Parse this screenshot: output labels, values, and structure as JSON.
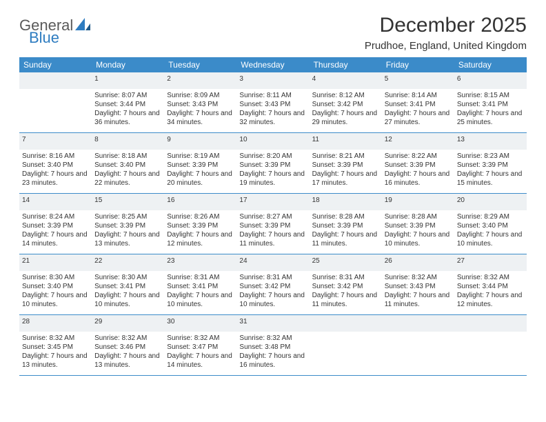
{
  "header": {
    "logo_general": "General",
    "logo_blue": "Blue",
    "month_title": "December 2025",
    "location": "Prudhoe, England, United Kingdom"
  },
  "colors": {
    "header_bg": "#3b8bc9",
    "header_text": "#ffffff",
    "daynum_bg": "#eef1f3",
    "row_border": "#3b8bc9",
    "text": "#333333",
    "logo_gray": "#5a5a5a",
    "logo_blue": "#2e7cc0"
  },
  "weekdays": [
    "Sunday",
    "Monday",
    "Tuesday",
    "Wednesday",
    "Thursday",
    "Friday",
    "Saturday"
  ],
  "weeks": [
    {
      "days": [
        null,
        {
          "n": "1",
          "sunrise": "8:07 AM",
          "sunset": "3:44 PM",
          "daylight": "7 hours and 36 minutes."
        },
        {
          "n": "2",
          "sunrise": "8:09 AM",
          "sunset": "3:43 PM",
          "daylight": "7 hours and 34 minutes."
        },
        {
          "n": "3",
          "sunrise": "8:11 AM",
          "sunset": "3:43 PM",
          "daylight": "7 hours and 32 minutes."
        },
        {
          "n": "4",
          "sunrise": "8:12 AM",
          "sunset": "3:42 PM",
          "daylight": "7 hours and 29 minutes."
        },
        {
          "n": "5",
          "sunrise": "8:14 AM",
          "sunset": "3:41 PM",
          "daylight": "7 hours and 27 minutes."
        },
        {
          "n": "6",
          "sunrise": "8:15 AM",
          "sunset": "3:41 PM",
          "daylight": "7 hours and 25 minutes."
        }
      ]
    },
    {
      "days": [
        {
          "n": "7",
          "sunrise": "8:16 AM",
          "sunset": "3:40 PM",
          "daylight": "7 hours and 23 minutes."
        },
        {
          "n": "8",
          "sunrise": "8:18 AM",
          "sunset": "3:40 PM",
          "daylight": "7 hours and 22 minutes."
        },
        {
          "n": "9",
          "sunrise": "8:19 AM",
          "sunset": "3:39 PM",
          "daylight": "7 hours and 20 minutes."
        },
        {
          "n": "10",
          "sunrise": "8:20 AM",
          "sunset": "3:39 PM",
          "daylight": "7 hours and 19 minutes."
        },
        {
          "n": "11",
          "sunrise": "8:21 AM",
          "sunset": "3:39 PM",
          "daylight": "7 hours and 17 minutes."
        },
        {
          "n": "12",
          "sunrise": "8:22 AM",
          "sunset": "3:39 PM",
          "daylight": "7 hours and 16 minutes."
        },
        {
          "n": "13",
          "sunrise": "8:23 AM",
          "sunset": "3:39 PM",
          "daylight": "7 hours and 15 minutes."
        }
      ]
    },
    {
      "days": [
        {
          "n": "14",
          "sunrise": "8:24 AM",
          "sunset": "3:39 PM",
          "daylight": "7 hours and 14 minutes."
        },
        {
          "n": "15",
          "sunrise": "8:25 AM",
          "sunset": "3:39 PM",
          "daylight": "7 hours and 13 minutes."
        },
        {
          "n": "16",
          "sunrise": "8:26 AM",
          "sunset": "3:39 PM",
          "daylight": "7 hours and 12 minutes."
        },
        {
          "n": "17",
          "sunrise": "8:27 AM",
          "sunset": "3:39 PM",
          "daylight": "7 hours and 11 minutes."
        },
        {
          "n": "18",
          "sunrise": "8:28 AM",
          "sunset": "3:39 PM",
          "daylight": "7 hours and 11 minutes."
        },
        {
          "n": "19",
          "sunrise": "8:28 AM",
          "sunset": "3:39 PM",
          "daylight": "7 hours and 10 minutes."
        },
        {
          "n": "20",
          "sunrise": "8:29 AM",
          "sunset": "3:40 PM",
          "daylight": "7 hours and 10 minutes."
        }
      ]
    },
    {
      "days": [
        {
          "n": "21",
          "sunrise": "8:30 AM",
          "sunset": "3:40 PM",
          "daylight": "7 hours and 10 minutes."
        },
        {
          "n": "22",
          "sunrise": "8:30 AM",
          "sunset": "3:41 PM",
          "daylight": "7 hours and 10 minutes."
        },
        {
          "n": "23",
          "sunrise": "8:31 AM",
          "sunset": "3:41 PM",
          "daylight": "7 hours and 10 minutes."
        },
        {
          "n": "24",
          "sunrise": "8:31 AM",
          "sunset": "3:42 PM",
          "daylight": "7 hours and 10 minutes."
        },
        {
          "n": "25",
          "sunrise": "8:31 AM",
          "sunset": "3:42 PM",
          "daylight": "7 hours and 11 minutes."
        },
        {
          "n": "26",
          "sunrise": "8:32 AM",
          "sunset": "3:43 PM",
          "daylight": "7 hours and 11 minutes."
        },
        {
          "n": "27",
          "sunrise": "8:32 AM",
          "sunset": "3:44 PM",
          "daylight": "7 hours and 12 minutes."
        }
      ]
    },
    {
      "days": [
        {
          "n": "28",
          "sunrise": "8:32 AM",
          "sunset": "3:45 PM",
          "daylight": "7 hours and 13 minutes."
        },
        {
          "n": "29",
          "sunrise": "8:32 AM",
          "sunset": "3:46 PM",
          "daylight": "7 hours and 13 minutes."
        },
        {
          "n": "30",
          "sunrise": "8:32 AM",
          "sunset": "3:47 PM",
          "daylight": "7 hours and 14 minutes."
        },
        {
          "n": "31",
          "sunrise": "8:32 AM",
          "sunset": "3:48 PM",
          "daylight": "7 hours and 16 minutes."
        },
        null,
        null,
        null
      ]
    }
  ],
  "labels": {
    "sunrise": "Sunrise:",
    "sunset": "Sunset:",
    "daylight": "Daylight:"
  }
}
